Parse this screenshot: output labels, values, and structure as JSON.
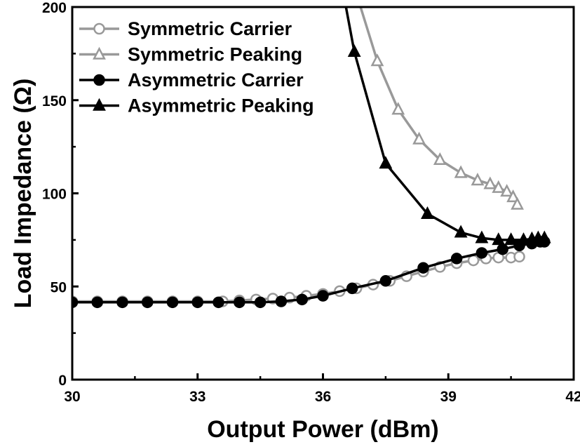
{
  "chart_data": {
    "type": "line",
    "xlabel": "Output Power (dBm)",
    "ylabel": "Load Impedance (Ω)",
    "xlim": [
      30,
      42
    ],
    "ylim": [
      0,
      200
    ],
    "xticks": [
      30,
      33,
      36,
      39,
      42
    ],
    "yticks": [
      0,
      50,
      100,
      150,
      200
    ],
    "legend": "top-left",
    "grid": false,
    "series": [
      {
        "name": "Symmetric Carrier",
        "color": "#999999",
        "marker": "circle-open",
        "x": [
          30.0,
          30.6,
          31.2,
          31.8,
          32.4,
          33.0,
          33.6,
          34.0,
          34.4,
          34.8,
          35.2,
          35.6,
          36.0,
          36.4,
          36.8,
          37.2,
          37.6,
          38.0,
          38.4,
          38.8,
          39.2,
          39.6,
          39.9,
          40.2,
          40.5,
          40.7
        ],
        "y": [
          42,
          42,
          42,
          42,
          42,
          42,
          42,
          42.5,
          43,
          43.5,
          44,
          45,
          46,
          47.5,
          49,
          51,
          53,
          55.5,
          58,
          60.5,
          62.5,
          64,
          65,
          65.5,
          65.5,
          66
        ]
      },
      {
        "name": "Symmetric Peaking",
        "color": "#999999",
        "marker": "triangle-open",
        "x": [
          36.9,
          37.3,
          37.8,
          38.3,
          38.8,
          39.3,
          39.7,
          40.0,
          40.2,
          40.4,
          40.55,
          40.65
        ],
        "y": [
          200,
          171,
          145,
          129,
          118,
          111,
          107,
          105,
          103,
          101,
          98,
          94
        ]
      },
      {
        "name": "Asymmetric Carrier",
        "color": "#000000",
        "marker": "circle-filled",
        "x": [
          30.0,
          30.6,
          31.2,
          31.8,
          32.4,
          33.0,
          33.5,
          34.0,
          34.5,
          35.0,
          35.5,
          36.0,
          36.7,
          37.5,
          38.4,
          39.2,
          39.8,
          40.3,
          40.7,
          41.0,
          41.2,
          41.3
        ],
        "y": [
          41.5,
          41.5,
          41.5,
          41.5,
          41.5,
          41.5,
          41.5,
          41.5,
          41.5,
          42,
          43,
          45,
          49,
          53,
          60,
          65,
          68,
          70,
          72,
          73,
          74,
          74
        ]
      },
      {
        "name": "Asymmetric Peaking",
        "color": "#000000",
        "marker": "triangle-filled",
        "x": [
          36.55,
          36.75,
          37.5,
          38.5,
          39.3,
          39.8,
          40.2,
          40.5,
          40.8,
          41.0,
          41.15,
          41.3
        ],
        "y": [
          200,
          176,
          116,
          89,
          79,
          76,
          75,
          75,
          75,
          75.5,
          76,
          76
        ]
      }
    ]
  }
}
